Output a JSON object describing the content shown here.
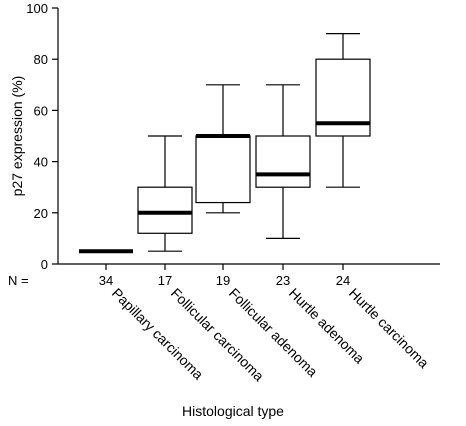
{
  "chart_data": {
    "type": "boxplot",
    "title": "",
    "ylabel": "p27 expression (%)",
    "xlabel": "Histological type",
    "ylim": [
      0,
      100
    ],
    "yticks": [
      0,
      20,
      40,
      60,
      80,
      100
    ],
    "n_prefix": "N =",
    "grid": false,
    "categories": [
      "Papillary carcinoma",
      "Follicular carcinoma",
      "Follicular adenoma",
      "Hurtle adenoma",
      "Hurtle carcinoma"
    ],
    "n": [
      "34",
      "17",
      "19",
      "23",
      "24"
    ],
    "boxes": [
      {
        "min": 5,
        "q1": 5,
        "median": 5,
        "q3": 5,
        "max": 5
      },
      {
        "min": 5,
        "q1": 12,
        "median": 20,
        "q3": 30,
        "max": 50
      },
      {
        "min": 20,
        "q1": 24,
        "median": 50,
        "q3": 50,
        "max": 70
      },
      {
        "min": 10,
        "q1": 30,
        "median": 35,
        "q3": 50,
        "max": 70
      },
      {
        "min": 30,
        "q1": 50,
        "median": 55,
        "q3": 80,
        "max": 90
      }
    ]
  }
}
